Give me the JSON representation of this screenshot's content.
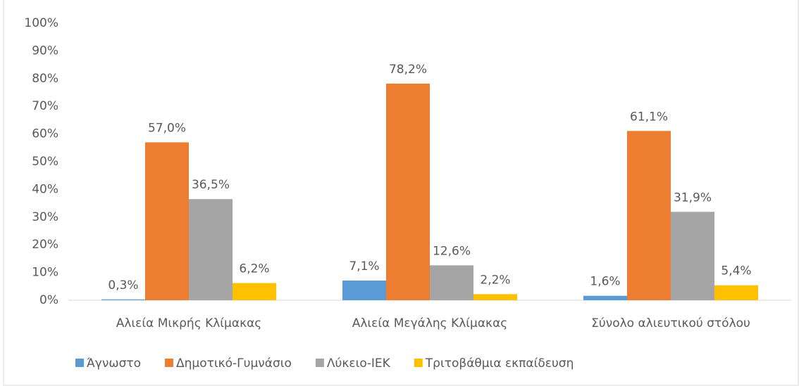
{
  "chart_data": {
    "type": "bar",
    "categories": [
      "Αλιεία Μικρής Κλίμακας",
      "Αλιεία Μεγάλης Κλίμακας",
      "Σύνολο αλιευτικού στόλου"
    ],
    "series": [
      {
        "name": "Άγνωστο",
        "color": "#5b9bd5",
        "values": [
          0.3,
          7.1,
          1.6
        ],
        "value_labels": [
          "0,3%",
          "7,1%",
          "1,6%"
        ]
      },
      {
        "name": "Δημοτικό-Γυμνάσιο",
        "color": "#ed7d31",
        "values": [
          57.0,
          78.2,
          61.1
        ],
        "value_labels": [
          "57,0%",
          "78,2%",
          "61,1%"
        ]
      },
      {
        "name": "Λύκειο-ΙΕΚ",
        "color": "#a5a5a5",
        "values": [
          36.5,
          12.6,
          31.9
        ],
        "value_labels": [
          "36,5%",
          "12,6%",
          "31,9%"
        ]
      },
      {
        "name": "Τριτοβάθμια εκπαίδευση",
        "color": "#ffc000",
        "values": [
          6.2,
          2.2,
          5.4
        ],
        "value_labels": [
          "6,2%",
          "2,2%",
          "5,4%"
        ]
      }
    ],
    "ylim": [
      0,
      100
    ],
    "yticks": [
      {
        "value": 0,
        "label": "0%"
      },
      {
        "value": 10,
        "label": "10%"
      },
      {
        "value": 20,
        "label": "20%"
      },
      {
        "value": 30,
        "label": "30%"
      },
      {
        "value": 40,
        "label": "40%"
      },
      {
        "value": 50,
        "label": "50%"
      },
      {
        "value": 60,
        "label": "60%"
      },
      {
        "value": 70,
        "label": "70%"
      },
      {
        "value": 80,
        "label": "80%"
      },
      {
        "value": 90,
        "label": "90%"
      },
      {
        "value": 100,
        "label": "100%"
      }
    ],
    "legend": "bottom"
  }
}
